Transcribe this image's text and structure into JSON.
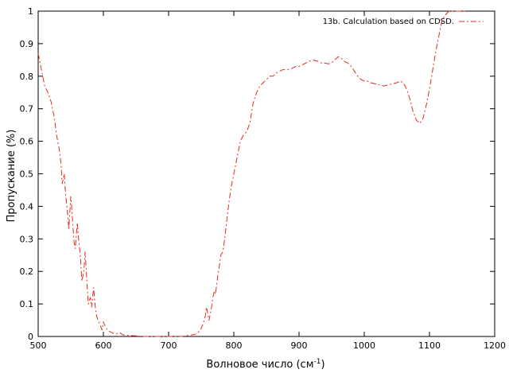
{
  "chart_data": {
    "type": "line",
    "title": "",
    "xlabel": "Волновое число (см",
    "xlabel_sup": "-1",
    "xlabel_suffix": ")",
    "ylabel": "Пропускание (%)",
    "xlim": [
      500,
      1200
    ],
    "ylim": [
      0,
      1
    ],
    "x_ticks": [
      500,
      600,
      700,
      800,
      900,
      1000,
      1100,
      1200
    ],
    "y_ticks": [
      0,
      0.1,
      0.2,
      0.3,
      0.4,
      0.5,
      0.6,
      0.7,
      0.8,
      0.9,
      1
    ],
    "y_tick_labels": [
      "0",
      "0.1",
      "0.2",
      "0.3",
      "0.4",
      "0.5",
      "0.6",
      "0.7",
      "0.8",
      "0.9",
      "1"
    ],
    "grid": false,
    "legend_position": "top-right",
    "series": [
      {
        "name": "13b. Calculation based on CDSD.",
        "color": "#e8281c",
        "dash": "dash-dot",
        "x": [
          500,
          505,
          510,
          515,
          520,
          525,
          528,
          530,
          532,
          535,
          537,
          540,
          542,
          545,
          547,
          550,
          552,
          555,
          557,
          560,
          562,
          565,
          567,
          570,
          572,
          575,
          577,
          580,
          582,
          585,
          588,
          590,
          592,
          595,
          598,
          600,
          603,
          606,
          610,
          615,
          620,
          625,
          630,
          640,
          650,
          660,
          680,
          700,
          720,
          730,
          740,
          745,
          750,
          753,
          756,
          758,
          760,
          762,
          765,
          768,
          770,
          772,
          775,
          778,
          780,
          783,
          786,
          790,
          793,
          796,
          800,
          805,
          810,
          815,
          820,
          825,
          828,
          830,
          835,
          840,
          845,
          850,
          855,
          860,
          865,
          870,
          875,
          880,
          885,
          890,
          895,
          900,
          905,
          910,
          915,
          920,
          925,
          930,
          935,
          940,
          945,
          950,
          955,
          960,
          965,
          970,
          975,
          980,
          985,
          990,
          995,
          1000,
          1005,
          1010,
          1020,
          1030,
          1040,
          1050,
          1055,
          1060,
          1065,
          1070,
          1075,
          1080,
          1085,
          1090,
          1095,
          1100,
          1105,
          1110,
          1115,
          1118,
          1120,
          1125,
          1130,
          1135,
          1140,
          1145,
          1150,
          1155
        ],
        "y": [
          0.87,
          0.82,
          0.77,
          0.75,
          0.72,
          0.67,
          0.62,
          0.6,
          0.58,
          0.53,
          0.47,
          0.5,
          0.44,
          0.38,
          0.33,
          0.43,
          0.38,
          0.29,
          0.27,
          0.35,
          0.3,
          0.24,
          0.17,
          0.2,
          0.26,
          0.16,
          0.1,
          0.12,
          0.09,
          0.15,
          0.08,
          0.06,
          0.05,
          0.035,
          0.02,
          0.045,
          0.03,
          0.02,
          0.015,
          0.01,
          0.008,
          0.012,
          0.005,
          0.003,
          0.002,
          0,
          0,
          0,
          0,
          0.003,
          0.006,
          0.012,
          0.025,
          0.04,
          0.06,
          0.09,
          0.07,
          0.05,
          0.08,
          0.12,
          0.14,
          0.13,
          0.18,
          0.22,
          0.25,
          0.26,
          0.3,
          0.37,
          0.42,
          0.46,
          0.5,
          0.55,
          0.6,
          0.62,
          0.63,
          0.66,
          0.7,
          0.72,
          0.75,
          0.77,
          0.78,
          0.79,
          0.8,
          0.8,
          0.81,
          0.815,
          0.82,
          0.82,
          0.82,
          0.825,
          0.83,
          0.83,
          0.835,
          0.84,
          0.845,
          0.85,
          0.848,
          0.845,
          0.84,
          0.84,
          0.838,
          0.842,
          0.85,
          0.86,
          0.855,
          0.845,
          0.84,
          0.83,
          0.815,
          0.8,
          0.79,
          0.785,
          0.785,
          0.78,
          0.775,
          0.77,
          0.775,
          0.78,
          0.785,
          0.78,
          0.76,
          0.73,
          0.69,
          0.665,
          0.655,
          0.67,
          0.71,
          0.76,
          0.82,
          0.88,
          0.93,
          0.96,
          0.975,
          0.99,
          1.0,
          1.0,
          1.0,
          1.0,
          1.0,
          1.0
        ]
      }
    ]
  }
}
